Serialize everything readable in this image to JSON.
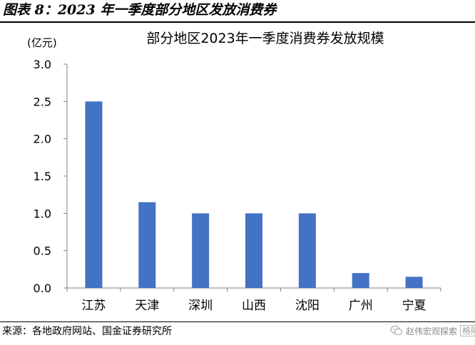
{
  "figure_title": "图表 8：2023 年一季度部分地区发放消费券",
  "source": "来源：各地政府网站、国金证券研究所",
  "watermark": {
    "account": "赵伟宏观探索",
    "logo": "格隆汇"
  },
  "colors": {
    "bar": "#4472C4",
    "axis": "#808080",
    "text": "#000000"
  },
  "chart_data": {
    "type": "bar",
    "title": "部分地区2023年一季度消费券发放规模",
    "unit_label": "(亿元)",
    "xlabel": "",
    "ylabel": "",
    "categories": [
      "江苏",
      "天津",
      "深圳",
      "山西",
      "沈阳",
      "广州",
      "宁夏"
    ],
    "values": [
      2.5,
      1.15,
      1.0,
      1.0,
      1.0,
      0.2,
      0.15
    ],
    "ylim": [
      0,
      3.0
    ],
    "yticks": [
      "0.0",
      "0.5",
      "1.0",
      "1.5",
      "2.0",
      "2.5",
      "3.0"
    ],
    "grid": false,
    "legend": false
  }
}
